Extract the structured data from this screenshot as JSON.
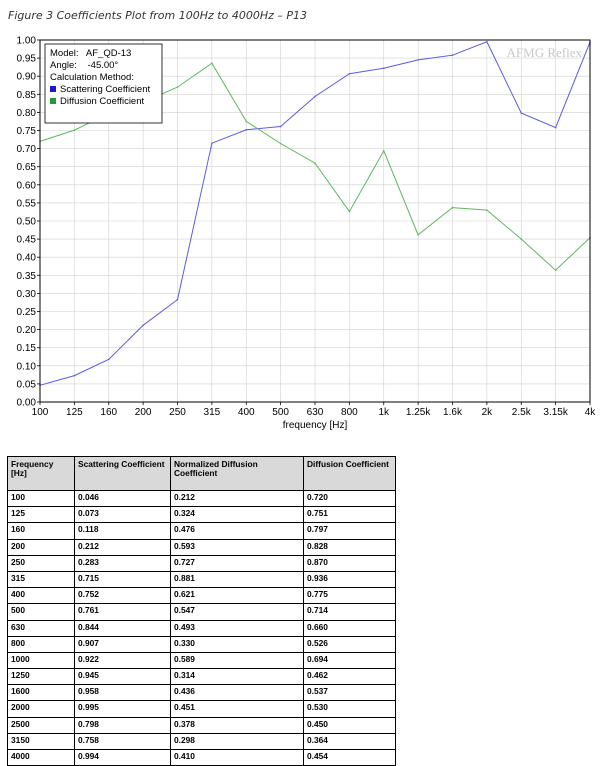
{
  "caption": "Figure 3 Coefficients Plot from 100Hz to 4000Hz – P13",
  "chart_data": {
    "type": "line",
    "xlabel": "frequency [Hz]",
    "ylabel": "",
    "ylim": [
      0,
      1
    ],
    "grid": true,
    "watermark": "AFMG Reflex",
    "categories": [
      "100",
      "125",
      "160",
      "200",
      "250",
      "315",
      "400",
      "500",
      "630",
      "800",
      "1k",
      "1.25k",
      "1.6k",
      "2k",
      "2.5k",
      "3.15k",
      "4k"
    ],
    "yticks": [
      "0.00",
      "0.05",
      "0.10",
      "0.15",
      "0.20",
      "0.25",
      "0.30",
      "0.35",
      "0.40",
      "0.45",
      "0.50",
      "0.55",
      "0.60",
      "0.65",
      "0.70",
      "0.75",
      "0.80",
      "0.85",
      "0.90",
      "0.95",
      "1.00"
    ],
    "legend": {
      "position": "top-left",
      "model": "Model:   AF_QD-13",
      "angle": "Angle:    -45.00°",
      "method": "Calculation Method:",
      "entries": [
        "Scattering Coefficient",
        "Diffusion Coefficient"
      ]
    },
    "series": [
      {
        "name": "Scattering Coefficient",
        "color": "#5a5ae6",
        "values": [
          0.046,
          0.073,
          0.118,
          0.212,
          0.283,
          0.715,
          0.752,
          0.761,
          0.844,
          0.907,
          0.922,
          0.945,
          0.958,
          0.995,
          0.798,
          0.758,
          0.994
        ]
      },
      {
        "name": "Diffusion Coefficient",
        "color": "#5cb85c",
        "values": [
          0.72,
          0.751,
          0.797,
          0.828,
          0.87,
          0.936,
          0.775,
          0.714,
          0.66,
          0.526,
          0.694,
          0.462,
          0.537,
          0.53,
          0.45,
          0.364,
          0.454
        ]
      }
    ]
  },
  "table": {
    "headers": [
      "Frequency [Hz]",
      "Scattering Coefficient",
      "Normalized Diffusion Coefficient",
      "Diffusion Coefficient"
    ],
    "rows": [
      [
        "100",
        "0.046",
        "0.212",
        "0.720"
      ],
      [
        "125",
        "0.073",
        "0.324",
        "0.751"
      ],
      [
        "160",
        "0.118",
        "0.476",
        "0.797"
      ],
      [
        "200",
        "0.212",
        "0.593",
        "0.828"
      ],
      [
        "250",
        "0.283",
        "0.727",
        "0.870"
      ],
      [
        "315",
        "0.715",
        "0.881",
        "0.936"
      ],
      [
        "400",
        "0.752",
        "0.621",
        "0.775"
      ],
      [
        "500",
        "0.761",
        "0.547",
        "0.714"
      ],
      [
        "630",
        "0.844",
        "0.493",
        "0.660"
      ],
      [
        "800",
        "0.907",
        "0.330",
        "0.526"
      ],
      [
        "1000",
        "0.922",
        "0.589",
        "0.694"
      ],
      [
        "1250",
        "0.945",
        "0.314",
        "0.462"
      ],
      [
        "1600",
        "0.958",
        "0.436",
        "0.537"
      ],
      [
        "2000",
        "0.995",
        "0.451",
        "0.530"
      ],
      [
        "2500",
        "0.798",
        "0.378",
        "0.450"
      ],
      [
        "3150",
        "0.758",
        "0.298",
        "0.364"
      ],
      [
        "4000",
        "0.994",
        "0.410",
        "0.454"
      ]
    ]
  }
}
